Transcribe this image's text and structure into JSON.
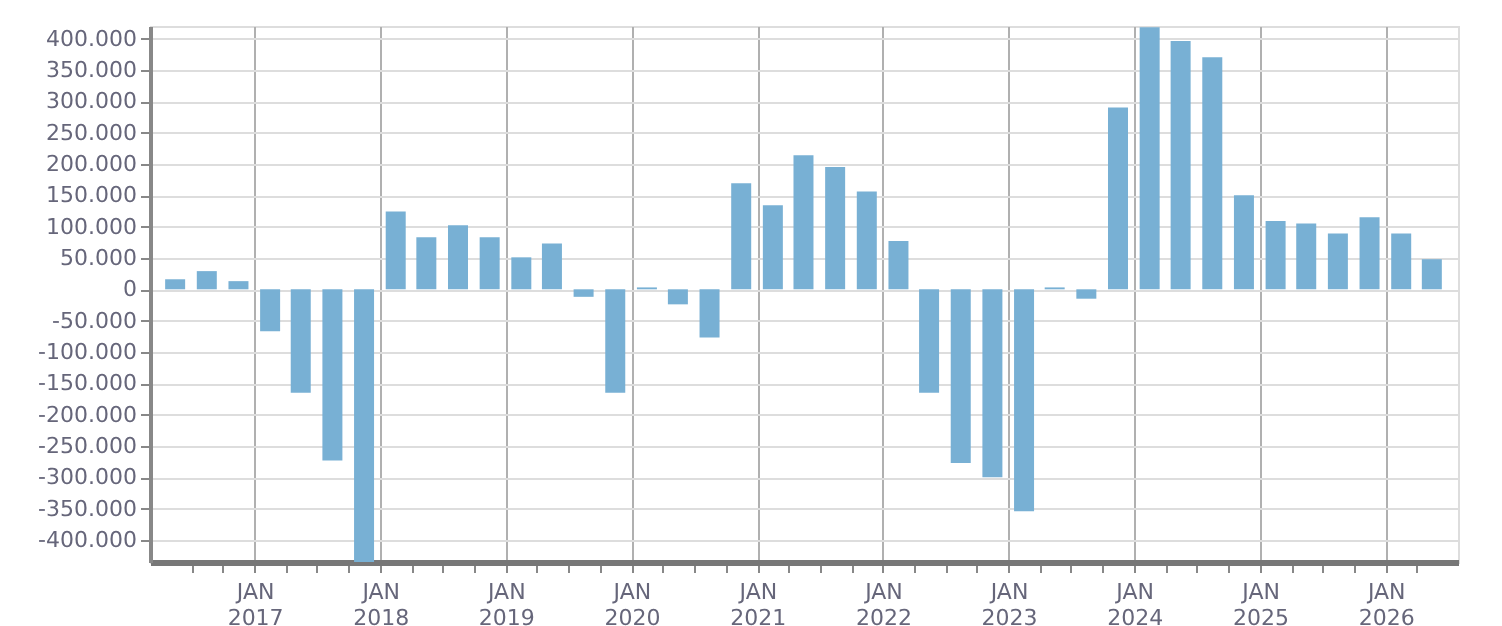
{
  "chart_data": {
    "type": "bar",
    "x": [
      "2016-05-15",
      "2016-08-15",
      "2016-11-15",
      "2017-02-15",
      "2017-05-15",
      "2017-08-15",
      "2017-11-15",
      "2018-02-15",
      "2018-05-15",
      "2018-08-15",
      "2018-11-15",
      "2019-02-15",
      "2019-05-15",
      "2019-08-15",
      "2019-11-15",
      "2020-02-15",
      "2020-05-15",
      "2020-08-15",
      "2020-11-15",
      "2021-02-15",
      "2021-05-15",
      "2021-08-15",
      "2021-11-15",
      "2022-02-15",
      "2022-05-15",
      "2022-08-15",
      "2022-11-15",
      "2023-02-15",
      "2023-05-15",
      "2023-08-15",
      "2023-11-15",
      "2024-02-15",
      "2024-05-15",
      "2024-08-15",
      "2024-11-15",
      "2025-02-15",
      "2025-05-15",
      "2025-08-15",
      "2025-11-15",
      "2026-02-15",
      "2026-05-15"
    ],
    "values": [
      16000,
      29000,
      13000,
      -67000,
      -165000,
      -273000,
      -435000,
      124000,
      83000,
      102000,
      83000,
      51000,
      73000,
      -12000,
      -165000,
      3000,
      -24000,
      -77000,
      169000,
      134000,
      214000,
      195000,
      156000,
      77000,
      -165000,
      -277000,
      -300000,
      -354000,
      3000,
      -15000,
      290000,
      418000,
      396000,
      370000,
      150000,
      109000,
      105000,
      89000,
      115000,
      89000,
      48000
    ],
    "color": "#78b0d4",
    "xlim": [
      "2016-04-01",
      "2026-07-01"
    ],
    "xticks": [
      {
        "value": "2016-07-01",
        "label": null
      },
      {
        "value": "2016-10-01",
        "label": null
      },
      {
        "value": "2017-01-01",
        "label": "JAN\n2017"
      },
      {
        "value": "2017-04-01",
        "label": null
      },
      {
        "value": "2017-07-01",
        "label": null
      },
      {
        "value": "2017-10-01",
        "label": null
      },
      {
        "value": "2018-01-01",
        "label": "JAN\n2018"
      },
      {
        "value": "2018-04-01",
        "label": null
      },
      {
        "value": "2018-07-01",
        "label": null
      },
      {
        "value": "2018-10-01",
        "label": null
      },
      {
        "value": "2019-01-01",
        "label": "JAN\n2019"
      },
      {
        "value": "2019-04-01",
        "label": null
      },
      {
        "value": "2019-07-01",
        "label": null
      },
      {
        "value": "2019-10-01",
        "label": null
      },
      {
        "value": "2020-01-01",
        "label": "JAN\n2020"
      },
      {
        "value": "2020-04-01",
        "label": null
      },
      {
        "value": "2020-07-01",
        "label": null
      },
      {
        "value": "2020-10-01",
        "label": null
      },
      {
        "value": "2021-01-01",
        "label": "JAN\n2021"
      },
      {
        "value": "2021-04-01",
        "label": null
      },
      {
        "value": "2021-07-01",
        "label": null
      },
      {
        "value": "2021-10-01",
        "label": null
      },
      {
        "value": "2022-01-01",
        "label": "JAN\n2022"
      },
      {
        "value": "2022-04-01",
        "label": null
      },
      {
        "value": "2022-07-01",
        "label": null
      },
      {
        "value": "2022-10-01",
        "label": null
      },
      {
        "value": "2023-01-01",
        "label": "JAN\n2023"
      },
      {
        "value": "2023-04-01",
        "label": null
      },
      {
        "value": "2023-07-01",
        "label": null
      },
      {
        "value": "2023-10-01",
        "label": null
      },
      {
        "value": "2024-01-01",
        "label": "JAN\n2024"
      },
      {
        "value": "2024-04-01",
        "label": null
      },
      {
        "value": "2024-07-01",
        "label": null
      },
      {
        "value": "2024-10-01",
        "label": null
      },
      {
        "value": "2025-01-01",
        "label": "JAN\n2025"
      },
      {
        "value": "2025-04-01",
        "label": null
      },
      {
        "value": "2025-07-01",
        "label": null
      },
      {
        "value": "2025-10-01",
        "label": null
      },
      {
        "value": "2026-01-01",
        "label": "JAN\n2026"
      },
      {
        "value": "2026-04-01",
        "label": null
      }
    ],
    "ylim": [
      -435000,
      420000
    ],
    "yticks": [
      {
        "value": -400000,
        "label": "-400.000"
      },
      {
        "value": -350000,
        "label": "-350.000"
      },
      {
        "value": -300000,
        "label": "-300.000"
      },
      {
        "value": -250000,
        "label": "-250.000"
      },
      {
        "value": -200000,
        "label": "-200.000"
      },
      {
        "value": -150000,
        "label": "-150.000"
      },
      {
        "value": -100000,
        "label": "-100.000"
      },
      {
        "value": -50000,
        "label": "-50.000"
      },
      0,
      {
        "value": 50000,
        "label": "50.000"
      },
      {
        "value": 100000,
        "label": "100.000"
      },
      {
        "value": 150000,
        "label": "150.000"
      },
      {
        "value": 200000,
        "label": "200.000"
      },
      {
        "value": 250000,
        "label": "250.000"
      },
      {
        "value": 300000,
        "label": "300.000"
      },
      {
        "value": 350000,
        "label": "350.000"
      },
      {
        "value": 400000,
        "label": "400.000"
      }
    ],
    "grid": true
  }
}
